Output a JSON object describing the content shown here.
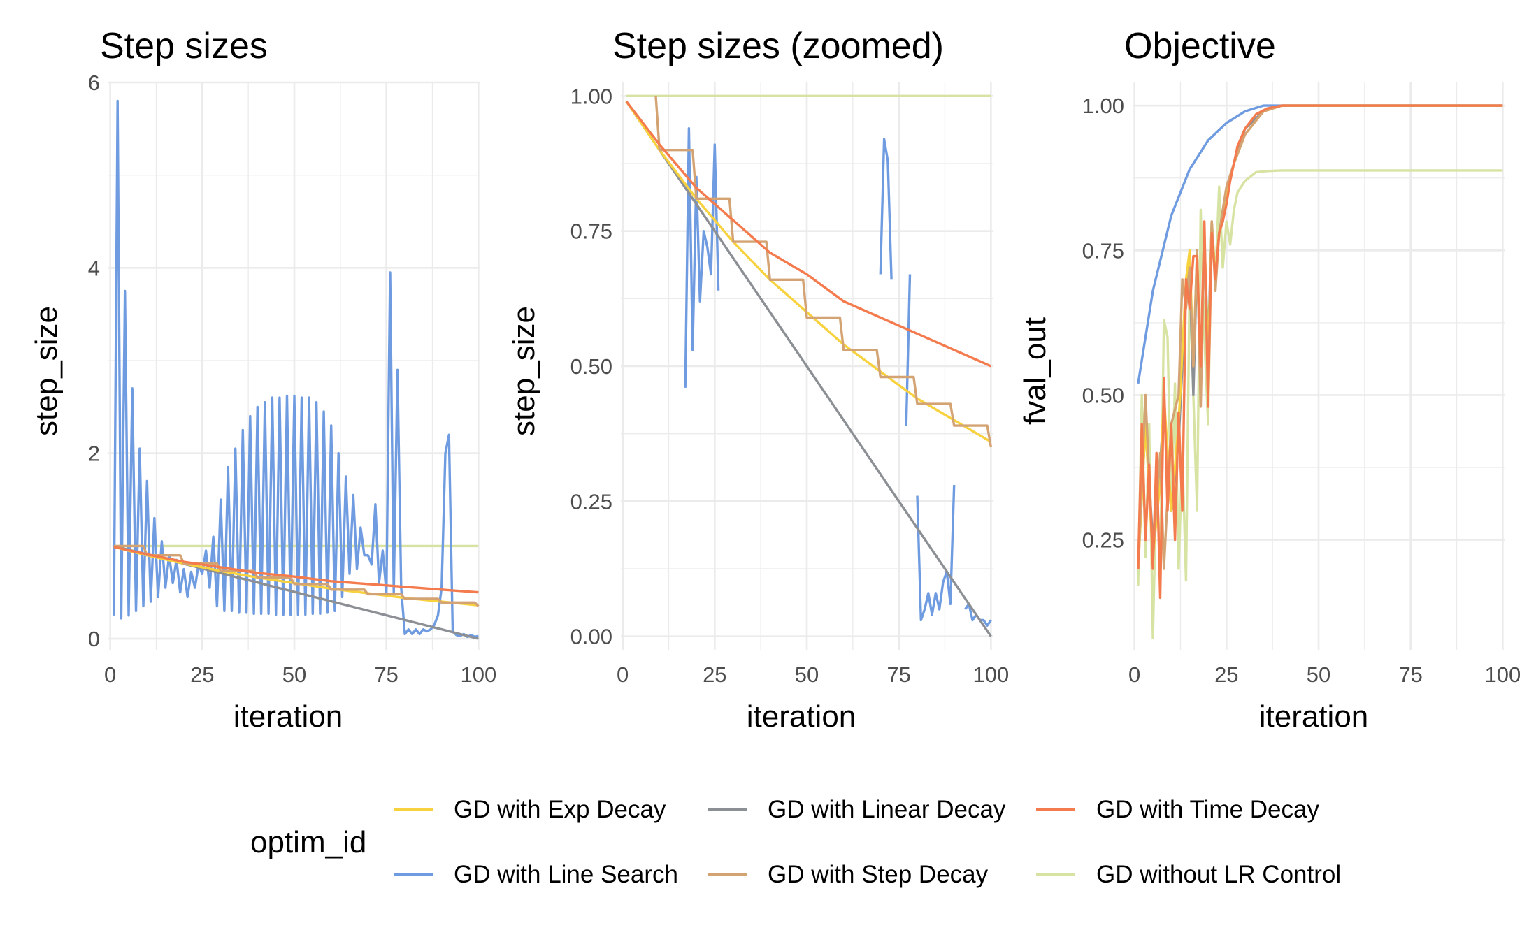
{
  "colors": {
    "GD with Exp Decay": "#F7D23E",
    "GD with Line Search": "#6F9BE0",
    "GD with Linear Decay": "#8C9095",
    "GD with Step Decay": "#D4A373",
    "GD with Time Decay": "#F47B4D",
    "GD without LR Control": "#D7E3A2"
  },
  "legend": {
    "title": "optim_id",
    "items": [
      "GD with Exp Decay",
      "GD with Linear Decay",
      "GD with Time Decay",
      "GD with Line Search",
      "GD with Step Decay",
      "GD without LR Control"
    ]
  },
  "chart_data": [
    {
      "type": "line",
      "title": "Step sizes",
      "xlabel": "iteration",
      "ylabel": "step_size",
      "xlim": [
        -0.5,
        100.5
      ],
      "ylim": [
        -0.12,
        6.0
      ],
      "xticks": [
        0,
        25,
        50,
        75,
        100
      ],
      "xtick_labels": [
        "0",
        "25",
        "50",
        "75",
        "100"
      ],
      "yticks": [
        0,
        2,
        4,
        6
      ],
      "ytick_labels": [
        "0",
        "2",
        "4",
        "6"
      ],
      "grid": true,
      "series": [
        {
          "name": "GD with Linear Decay",
          "x": [
            1,
            100
          ],
          "y": [
            1.0,
            0.0
          ]
        },
        {
          "name": "GD with Exp Decay",
          "x": [
            1,
            10,
            20,
            30,
            40,
            50,
            60,
            70,
            80,
            90,
            100
          ],
          "y": [
            0.99,
            0.9,
            0.81,
            0.73,
            0.66,
            0.6,
            0.54,
            0.49,
            0.44,
            0.4,
            0.36
          ]
        },
        {
          "name": "GD with Step Decay",
          "x": [
            1,
            9,
            10,
            19,
            20,
            29,
            30,
            39,
            40,
            49,
            50,
            59,
            60,
            69,
            70,
            79,
            80,
            89,
            90,
            99,
            100
          ],
          "y": [
            1.0,
            1.0,
            0.9,
            0.9,
            0.81,
            0.81,
            0.73,
            0.73,
            0.66,
            0.66,
            0.59,
            0.59,
            0.53,
            0.53,
            0.48,
            0.48,
            0.43,
            0.43,
            0.39,
            0.39,
            0.35
          ]
        },
        {
          "name": "GD with Time Decay",
          "x": [
            1,
            10,
            20,
            30,
            40,
            50,
            60,
            70,
            80,
            90,
            100
          ],
          "y": [
            0.99,
            0.91,
            0.83,
            0.77,
            0.71,
            0.67,
            0.62,
            0.59,
            0.56,
            0.53,
            0.5
          ]
        },
        {
          "name": "GD without LR Control",
          "x": [
            1,
            100
          ],
          "y": [
            1.0,
            1.0
          ]
        },
        {
          "name": "GD with Line Search",
          "x": [
            1,
            2,
            3,
            4,
            5,
            6,
            7,
            8,
            9,
            10,
            11,
            12,
            13,
            14,
            15,
            16,
            17,
            18,
            19,
            20,
            21,
            22,
            23,
            24,
            25,
            26,
            27,
            28,
            29,
            30,
            31,
            32,
            33,
            34,
            35,
            36,
            37,
            38,
            39,
            40,
            41,
            42,
            43,
            44,
            45,
            46,
            47,
            48,
            49,
            50,
            51,
            52,
            53,
            54,
            55,
            56,
            57,
            58,
            59,
            60,
            61,
            62,
            63,
            64,
            65,
            66,
            67,
            68,
            69,
            70,
            71,
            72,
            73,
            74,
            75,
            76,
            77,
            78,
            79,
            80,
            81,
            82,
            83,
            84,
            85,
            86,
            87,
            88,
            89,
            90,
            91,
            92,
            93,
            94,
            95,
            96,
            97,
            98,
            99,
            100
          ],
          "y": [
            0.25,
            5.8,
            0.22,
            3.75,
            0.25,
            2.7,
            0.3,
            2.05,
            0.35,
            1.7,
            0.4,
            1.3,
            0.45,
            1.05,
            0.55,
            0.9,
            0.6,
            0.85,
            0.5,
            0.75,
            0.45,
            0.72,
            0.55,
            0.8,
            0.7,
            0.95,
            0.55,
            1.1,
            0.35,
            1.5,
            0.3,
            1.85,
            0.3,
            2.05,
            0.28,
            2.25,
            0.28,
            2.4,
            0.27,
            2.5,
            0.27,
            2.55,
            0.27,
            2.6,
            0.26,
            2.6,
            0.26,
            2.62,
            0.26,
            2.62,
            0.26,
            2.6,
            0.26,
            2.6,
            0.27,
            2.55,
            0.27,
            2.45,
            0.28,
            2.3,
            0.3,
            2.0,
            0.45,
            1.75,
            0.7,
            1.55,
            0.75,
            1.2,
            0.9,
            0.9,
            0.8,
            1.45,
            0.6,
            0.95,
            0.5,
            3.95,
            0.5,
            2.9,
            0.55,
            0.05,
            0.1,
            0.05,
            0.1,
            0.05,
            0.1,
            0.08,
            0.1,
            0.15,
            0.25,
            0.55,
            2.0,
            2.2,
            0.08,
            0.04,
            0.03,
            0.05,
            0.02,
            0.04,
            0.02,
            0.03
          ]
        }
      ]
    },
    {
      "type": "line",
      "title": "Step sizes (zoomed)",
      "xlabel": "iteration",
      "ylabel": "step_size",
      "xlim": [
        -0.5,
        100.5
      ],
      "ylim": [
        -0.025,
        1.025
      ],
      "xticks": [
        0,
        25,
        50,
        75,
        100
      ],
      "xtick_labels": [
        "0",
        "25",
        "50",
        "75",
        "100"
      ],
      "yticks": [
        0,
        0.25,
        0.5,
        0.75,
        1.0
      ],
      "ytick_labels": [
        "0.00",
        "0.25",
        "0.50",
        "0.75",
        "1.00"
      ],
      "grid": true,
      "series": [
        {
          "name": "GD with Linear Decay",
          "x": [
            1,
            100
          ],
          "y": [
            0.99,
            0.0
          ]
        },
        {
          "name": "GD with Exp Decay",
          "x": [
            1,
            10,
            20,
            30,
            40,
            50,
            60,
            70,
            80,
            90,
            100
          ],
          "y": [
            0.99,
            0.9,
            0.81,
            0.73,
            0.66,
            0.6,
            0.54,
            0.49,
            0.44,
            0.4,
            0.36
          ]
        },
        {
          "name": "GD with Step Decay",
          "x": [
            9,
            10,
            19,
            20,
            29,
            30,
            39,
            40,
            49,
            50,
            59,
            60,
            69,
            70,
            79,
            80,
            89,
            90,
            99,
            100
          ],
          "y": [
            1.0,
            0.9,
            0.9,
            0.81,
            0.81,
            0.73,
            0.73,
            0.66,
            0.66,
            0.59,
            0.59,
            0.53,
            0.53,
            0.48,
            0.48,
            0.43,
            0.43,
            0.39,
            0.39,
            0.35
          ]
        },
        {
          "name": "GD with Time Decay",
          "x": [
            1,
            10,
            20,
            30,
            40,
            50,
            60,
            70,
            80,
            90,
            100
          ],
          "y": [
            0.99,
            0.91,
            0.83,
            0.77,
            0.71,
            0.67,
            0.62,
            0.59,
            0.56,
            0.53,
            0.5
          ]
        },
        {
          "name": "GD without LR Control",
          "x": [
            1,
            100
          ],
          "y": [
            1.0,
            1.0
          ]
        },
        {
          "name": "GD with Line Search",
          "segments": [
            {
              "x": [
                17,
                18,
                19,
                20,
                21,
                22,
                23,
                24,
                25,
                26
              ],
              "y": [
                0.46,
                0.94,
                0.53,
                0.85,
                0.62,
                0.75,
                0.72,
                0.67,
                0.91,
                0.64
              ]
            },
            {
              "x": [
                70,
                71,
                72,
                73
              ],
              "y": [
                0.67,
                0.92,
                0.88,
                0.66
              ]
            },
            {
              "x": [
                77,
                78
              ],
              "y": [
                0.39,
                0.67
              ]
            },
            {
              "x": [
                80,
                81,
                82,
                83,
                84,
                85,
                86,
                87,
                88,
                89,
                90
              ],
              "y": [
                0.26,
                0.03,
                0.05,
                0.08,
                0.04,
                0.08,
                0.05,
                0.1,
                0.12,
                0.06,
                0.28
              ]
            },
            {
              "x": [
                93,
                94,
                95,
                96,
                97,
                98,
                99,
                100
              ],
              "y": [
                0.05,
                0.06,
                0.03,
                0.04,
                0.03,
                0.03,
                0.02,
                0.03
              ]
            }
          ]
        }
      ]
    },
    {
      "type": "line",
      "title": "Objective",
      "xlabel": "iteration",
      "ylabel": "fval_out",
      "xlim": [
        -0.5,
        100.5
      ],
      "ylim": [
        0.06,
        1.04
      ],
      "xticks": [
        0,
        25,
        50,
        75,
        100
      ],
      "xtick_labels": [
        "0",
        "25",
        "50",
        "75",
        "100"
      ],
      "yticks": [
        0.25,
        0.5,
        0.75,
        1.0
      ],
      "ytick_labels": [
        "0.25",
        "0.50",
        "0.75",
        "1.00"
      ],
      "grid": true,
      "series": [
        {
          "name": "GD with Line Search",
          "x": [
            1,
            5,
            10,
            15,
            20,
            25,
            30,
            35,
            40,
            50,
            100
          ],
          "y": [
            0.52,
            0.68,
            0.81,
            0.89,
            0.94,
            0.97,
            0.99,
            1.0,
            1.0,
            1.0,
            1.0
          ]
        },
        {
          "name": "GD without LR Control",
          "x": [
            1,
            2,
            3,
            4,
            5,
            6,
            7,
            8,
            9,
            10,
            11,
            12,
            13,
            14,
            15,
            16,
            17,
            18,
            19,
            20,
            21,
            22,
            23,
            24,
            25,
            26,
            27,
            28,
            30,
            33,
            36,
            40,
            50,
            100
          ],
          "y": [
            0.17,
            0.5,
            0.22,
            0.45,
            0.08,
            0.36,
            0.2,
            0.63,
            0.6,
            0.3,
            0.52,
            0.2,
            0.4,
            0.18,
            0.7,
            0.5,
            0.3,
            0.82,
            0.6,
            0.45,
            0.78,
            0.7,
            0.86,
            0.72,
            0.8,
            0.76,
            0.82,
            0.85,
            0.87,
            0.885,
            0.887,
            0.888,
            0.888,
            0.888
          ]
        },
        {
          "name": "GD with Exp Decay",
          "x": [
            1,
            3,
            5,
            7,
            8,
            10,
            12,
            14,
            15,
            16,
            17,
            18,
            19,
            20,
            21,
            22,
            23,
            24,
            25,
            27,
            30,
            35,
            40,
            50,
            100
          ],
          "y": [
            0.2,
            0.45,
            0.22,
            0.35,
            0.5,
            0.3,
            0.45,
            0.7,
            0.75,
            0.55,
            0.75,
            0.5,
            0.78,
            0.55,
            0.8,
            0.7,
            0.78,
            0.8,
            0.85,
            0.9,
            0.95,
            0.99,
            1.0,
            1.0,
            1.0
          ]
        },
        {
          "name": "GD with Step Decay",
          "x": [
            1,
            3,
            5,
            7,
            8,
            10,
            12,
            13,
            14,
            15,
            16,
            17,
            18,
            19,
            20,
            21,
            22,
            23,
            24,
            25,
            27,
            30,
            35,
            40,
            50,
            100
          ],
          "y": [
            0.2,
            0.5,
            0.22,
            0.4,
            0.2,
            0.45,
            0.5,
            0.7,
            0.65,
            0.72,
            0.55,
            0.75,
            0.48,
            0.78,
            0.5,
            0.8,
            0.68,
            0.78,
            0.82,
            0.86,
            0.9,
            0.95,
            0.99,
            1.0,
            1.0,
            1.0
          ]
        },
        {
          "name": "GD with Linear Decay",
          "x": [
            1,
            3,
            5,
            7,
            8,
            10,
            12,
            14,
            15,
            16,
            17,
            18,
            19,
            20,
            21,
            22,
            23,
            24,
            25,
            27,
            30,
            35,
            40,
            50,
            100
          ],
          "y": [
            0.2,
            0.45,
            0.25,
            0.38,
            0.48,
            0.3,
            0.42,
            0.68,
            0.72,
            0.5,
            0.74,
            0.52,
            0.77,
            0.58,
            0.8,
            0.7,
            0.78,
            0.8,
            0.85,
            0.9,
            0.96,
            0.99,
            1.0,
            1.0,
            1.0
          ]
        },
        {
          "name": "GD with Time Decay",
          "x": [
            1,
            2,
            3,
            4,
            5,
            6,
            7,
            8,
            9,
            10,
            11,
            12,
            13,
            14,
            15,
            16,
            17,
            18,
            19,
            20,
            21,
            22,
            23,
            24,
            25,
            26,
            27,
            28,
            30,
            33,
            36,
            40,
            50,
            100
          ],
          "y": [
            0.2,
            0.45,
            0.25,
            0.38,
            0.2,
            0.4,
            0.15,
            0.53,
            0.3,
            0.45,
            0.25,
            0.47,
            0.3,
            0.7,
            0.65,
            0.74,
            0.74,
            0.55,
            0.8,
            0.48,
            0.78,
            0.7,
            0.78,
            0.8,
            0.83,
            0.87,
            0.9,
            0.93,
            0.96,
            0.985,
            0.995,
            1.0,
            1.0,
            1.0
          ]
        }
      ]
    }
  ]
}
